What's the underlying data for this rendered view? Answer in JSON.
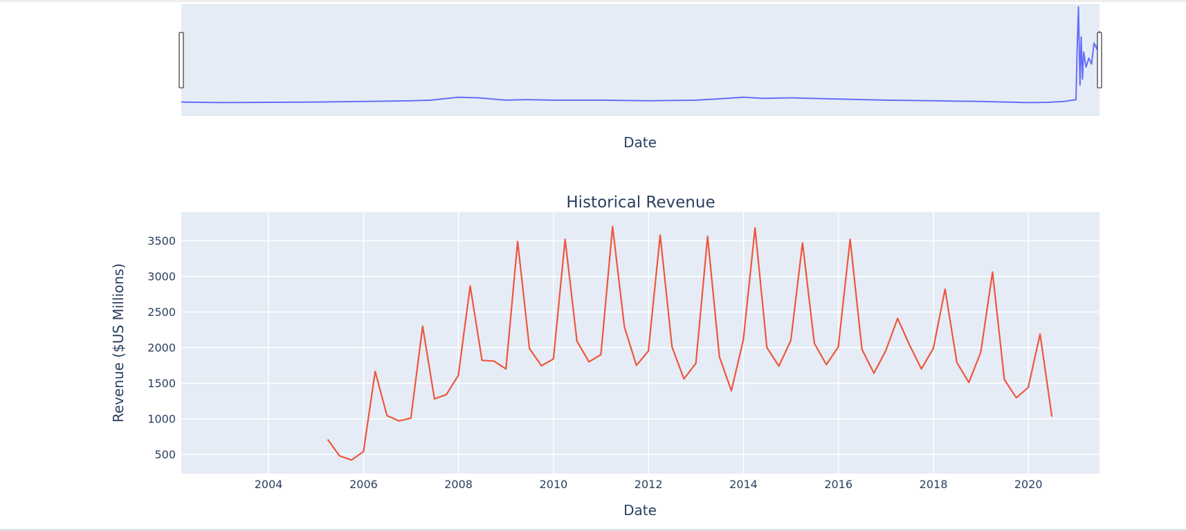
{
  "range_slider": {
    "xlabel": "Date",
    "x_range": [
      "2002-03-01",
      "2021-07-01"
    ],
    "series": [
      {
        "name": "",
        "color": "#636efa",
        "x": [
          "2002-03-01",
          "2003-01-01",
          "2004-01-01",
          "2005-01-01",
          "2006-01-01",
          "2007-01-01",
          "2007-06-01",
          "2008-01-01",
          "2008-06-01",
          "2009-01-01",
          "2009-06-01",
          "2010-01-01",
          "2011-01-01",
          "2012-01-01",
          "2013-01-01",
          "2013-06-01",
          "2014-01-01",
          "2014-06-01",
          "2015-01-01",
          "2015-06-01",
          "2016-01-01",
          "2017-01-01",
          "2018-01-01",
          "2019-01-01",
          "2020-01-01",
          "2020-06-01",
          "2020-10-01",
          "2021-01-01",
          "2021-01-10",
          "2021-01-20",
          "2021-02-01",
          "2021-02-10",
          "2021-02-20",
          "2021-03-01",
          "2021-03-20",
          "2021-04-10",
          "2021-05-01",
          "2021-05-20",
          "2021-06-10",
          "2021-07-01"
        ],
        "y": [
          12,
          11,
          11.5,
          12,
          13,
          14,
          15,
          20,
          19,
          15,
          16,
          15,
          15,
          14,
          15,
          17,
          20,
          18,
          19,
          18,
          17,
          15,
          14,
          13,
          11,
          11.5,
          13,
          16,
          100,
          170,
          40,
          120,
          50,
          95,
          70,
          85,
          75,
          110,
          100,
          130
        ]
      }
    ],
    "y_range": [
      0,
      170
    ],
    "grip_color": "#444444"
  },
  "chart_data": {
    "type": "line",
    "title": "Historical Revenue",
    "xlabel": "Date",
    "ylabel": "Revenue ($US Millions)",
    "x_range": [
      "2002-03-01",
      "2021-07-01"
    ],
    "ylim": [
      230,
      3900
    ],
    "x_ticks": [
      "2004",
      "2006",
      "2008",
      "2010",
      "2012",
      "2014",
      "2016",
      "2018",
      "2020"
    ],
    "y_ticks": [
      500,
      1000,
      1500,
      2000,
      2500,
      3000,
      3500
    ],
    "grid": true,
    "series": [
      {
        "name": "",
        "color": "#ef553b",
        "x": [
          "2005-03-31",
          "2005-06-30",
          "2005-09-30",
          "2005-12-31",
          "2006-03-31",
          "2006-06-30",
          "2006-09-30",
          "2006-12-31",
          "2007-03-31",
          "2007-06-30",
          "2007-09-30",
          "2007-12-31",
          "2008-03-31",
          "2008-06-30",
          "2008-09-30",
          "2008-12-31",
          "2009-03-31",
          "2009-06-30",
          "2009-09-30",
          "2009-12-31",
          "2010-03-31",
          "2010-06-30",
          "2010-09-30",
          "2010-12-31",
          "2011-03-31",
          "2011-06-30",
          "2011-09-30",
          "2011-12-31",
          "2012-03-31",
          "2012-06-30",
          "2012-09-30",
          "2012-12-31",
          "2013-03-31",
          "2013-06-30",
          "2013-09-30",
          "2013-12-31",
          "2014-03-31",
          "2014-06-30",
          "2014-09-30",
          "2014-12-31",
          "2015-03-31",
          "2015-06-30",
          "2015-09-30",
          "2015-12-31",
          "2016-03-31",
          "2016-06-30",
          "2016-09-30",
          "2016-12-31",
          "2017-03-31",
          "2017-06-30",
          "2017-09-30",
          "2017-12-31",
          "2018-03-31",
          "2018-06-30",
          "2018-09-30",
          "2018-12-31",
          "2019-03-31",
          "2019-06-30",
          "2019-09-30",
          "2019-12-31",
          "2020-03-31",
          "2020-06-30"
        ],
        "y": [
          710,
          480,
          420,
          540,
          1665,
          1045,
          970,
          1010,
          2300,
          1280,
          1340,
          1610,
          2865,
          1820,
          1810,
          1700,
          3490,
          1985,
          1745,
          1840,
          3520,
          2090,
          1800,
          1900,
          3700,
          2290,
          1750,
          1950,
          3580,
          2010,
          1560,
          1780,
          3560,
          1870,
          1395,
          2110,
          3680,
          2000,
          1740,
          2100,
          3470,
          2060,
          1760,
          2010,
          3520,
          1975,
          1640,
          1960,
          2410,
          2040,
          1700,
          1990,
          2820,
          1790,
          1510,
          1935,
          3060,
          1550,
          1295,
          1440,
          2190,
          1030
        ]
      }
    ]
  }
}
